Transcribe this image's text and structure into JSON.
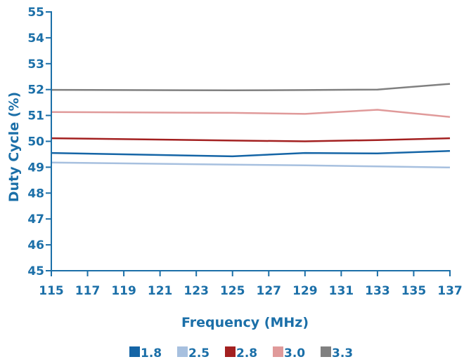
{
  "chart_data": {
    "type": "line",
    "title": "",
    "xlabel": "Frequency (MHz)",
    "ylabel": "Duty Cycle  (%)",
    "xlim": [
      115,
      137
    ],
    "ylim": [
      45,
      55
    ],
    "xticks": [
      115,
      117,
      119,
      121,
      123,
      125,
      127,
      129,
      131,
      133,
      135,
      137
    ],
    "yticks": [
      45,
      46,
      47,
      48,
      49,
      50,
      51,
      52,
      53,
      54,
      55
    ],
    "grid": false,
    "legend": "bottom",
    "axis_color": "#1b6fa8",
    "x": [
      115,
      125,
      129,
      133,
      137
    ],
    "series": [
      {
        "name": "1.8",
        "color": "#1565a6",
        "values": [
          49.55,
          49.42,
          49.55,
          49.53,
          49.63
        ]
      },
      {
        "name": "2.5",
        "color": "#a7c0df",
        "values": [
          49.18,
          49.1,
          49.07,
          49.03,
          48.99
        ]
      },
      {
        "name": "2.8",
        "color": "#a32020",
        "values": [
          50.12,
          50.03,
          50.0,
          50.05,
          50.12
        ]
      },
      {
        "name": "3.0",
        "color": "#e09a9a",
        "values": [
          51.13,
          51.1,
          51.06,
          51.22,
          50.94
        ]
      },
      {
        "name": "3.3",
        "color": "#808080",
        "values": [
          51.99,
          51.97,
          51.98,
          52.0,
          52.22
        ]
      }
    ]
  }
}
